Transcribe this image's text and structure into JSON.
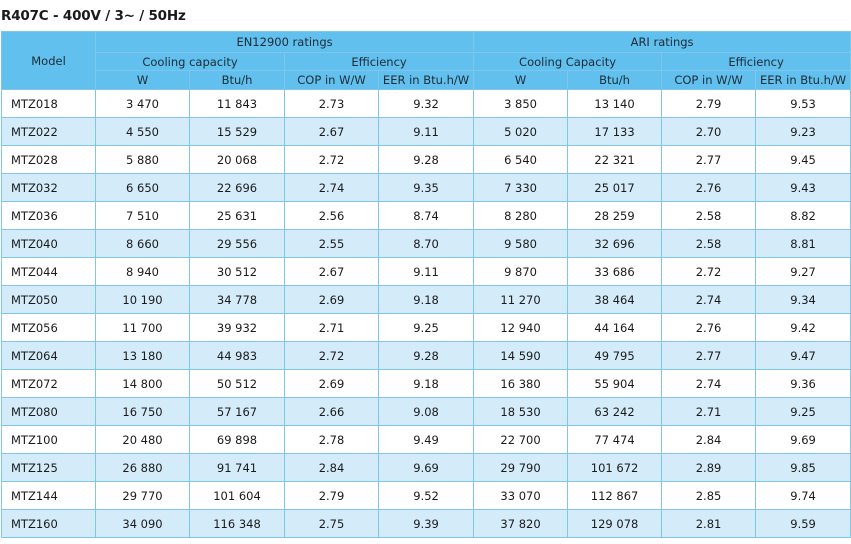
{
  "title": "R407C - 400V / 3~ / 50Hz",
  "header": {
    "model": "Model",
    "en_group": "EN12900 ratings",
    "ari_group": "ARI ratings",
    "en_cooling": "Cooling capacity",
    "en_efficiency": "Efficiency",
    "ari_cooling": "Cooling Capacity",
    "ari_efficiency": "Efficiency",
    "col_w": "W",
    "col_btuh": "Btu/h",
    "col_cop": "COP in W/W",
    "col_eer": "EER in Btu.h/W"
  },
  "rows": [
    [
      "MTZ018",
      "3 470",
      "11 843",
      "2.73",
      "9.32",
      "3 850",
      "13 140",
      "2.79",
      "9.53"
    ],
    [
      "MTZ022",
      "4 550",
      "15 529",
      "2.67",
      "9.11",
      "5 020",
      "17 133",
      "2.70",
      "9.23"
    ],
    [
      "MTZ028",
      "5 880",
      "20 068",
      "2.72",
      "9.28",
      "6 540",
      "22 321",
      "2.77",
      "9.45"
    ],
    [
      "MTZ032",
      "6 650",
      "22 696",
      "2.74",
      "9.35",
      "7 330",
      "25 017",
      "2.76",
      "9.43"
    ],
    [
      "MTZ036",
      "7 510",
      "25 631",
      "2.56",
      "8.74",
      "8 280",
      "28 259",
      "2.58",
      "8.82"
    ],
    [
      "MTZ040",
      "8 660",
      "29 556",
      "2.55",
      "8.70",
      "9 580",
      "32 696",
      "2.58",
      "8.81"
    ],
    [
      "MTZ044",
      "8 940",
      "30 512",
      "2.67",
      "9.11",
      "9 870",
      "33 686",
      "2.72",
      "9.27"
    ],
    [
      "MTZ050",
      "10 190",
      "34 778",
      "2.69",
      "9.18",
      "11 270",
      "38 464",
      "2.74",
      "9.34"
    ],
    [
      "MTZ056",
      "11 700",
      "39 932",
      "2.71",
      "9.25",
      "12 940",
      "44 164",
      "2.76",
      "9.42"
    ],
    [
      "MTZ064",
      "13 180",
      "44 983",
      "2.72",
      "9.28",
      "14 590",
      "49 795",
      "2.77",
      "9.47"
    ],
    [
      "MTZ072",
      "14 800",
      "50 512",
      "2.69",
      "9.18",
      "16 380",
      "55 904",
      "2.74",
      "9.36"
    ],
    [
      "MTZ080",
      "16 750",
      "57 167",
      "2.66",
      "9.08",
      "18 530",
      "63 242",
      "2.71",
      "9.25"
    ],
    [
      "MTZ100",
      "20 480",
      "69 898",
      "2.78",
      "9.49",
      "22 700",
      "77 474",
      "2.84",
      "9.69"
    ],
    [
      "MTZ125",
      "26 880",
      "91 741",
      "2.84",
      "9.69",
      "29 790",
      "101 672",
      "2.89",
      "9.85"
    ],
    [
      "MTZ144",
      "29 770",
      "101 604",
      "2.79",
      "9.52",
      "33 070",
      "112 867",
      "2.85",
      "9.74"
    ],
    [
      "MTZ160",
      "34 090",
      "116 348",
      "2.75",
      "9.39",
      "37 820",
      "129 078",
      "2.81",
      "9.59"
    ]
  ]
}
